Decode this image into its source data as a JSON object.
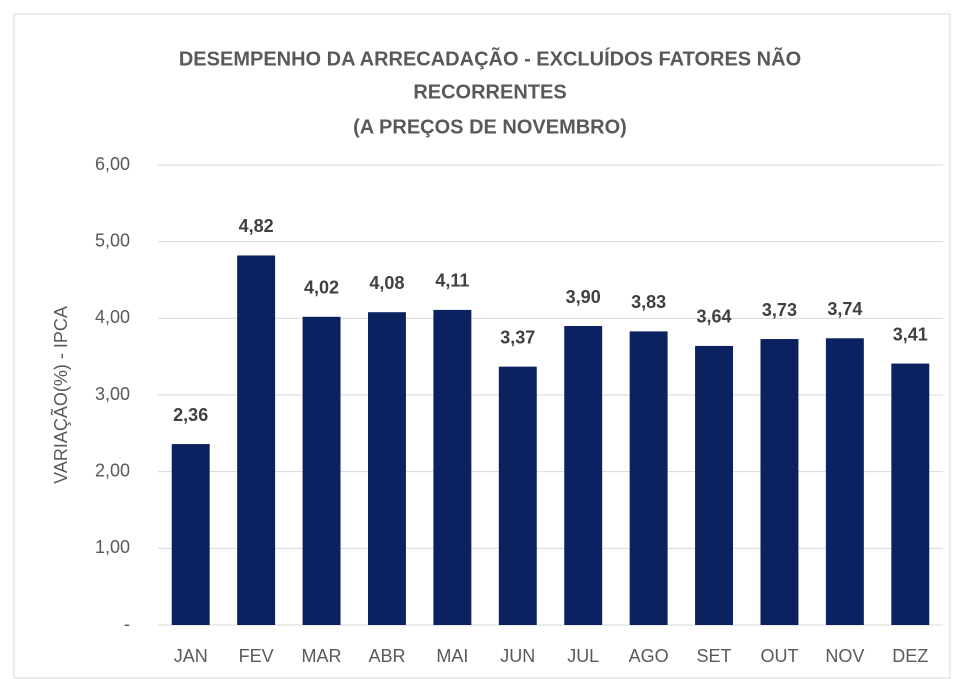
{
  "chart_data": {
    "type": "bar",
    "title": [
      "DESEMPENHO DA ARRECADAÇÃO - EXCLUÍDOS FATORES NÃO",
      "RECORRENTES",
      "(A PREÇOS DE NOVEMBRO)"
    ],
    "y_label": "VARIAÇÃO(%) - IPCA",
    "categories": [
      "JAN",
      "FEV",
      "MAR",
      "ABR",
      "MAI",
      "JUN",
      "JUL",
      "AGO",
      "SET",
      "OUT",
      "NOV",
      "DEZ"
    ],
    "values": [
      2.36,
      4.82,
      4.02,
      4.08,
      4.11,
      3.37,
      3.9,
      3.83,
      3.64,
      3.73,
      3.74,
      3.41
    ],
    "value_labels": [
      "2,36",
      "4,82",
      "4,02",
      "4,08",
      "4,11",
      "3,37",
      "3,90",
      "3,83",
      "3,64",
      "3,73",
      "3,74",
      "3,41"
    ],
    "color": "#0c2160",
    "ylim": [
      0,
      6
    ],
    "yticks": [
      {
        "value": 0,
        "label": "-"
      },
      {
        "value": 1,
        "label": "1,00"
      },
      {
        "value": 2,
        "label": "2,00"
      },
      {
        "value": 3,
        "label": "3,00"
      },
      {
        "value": 4,
        "label": "4,00"
      },
      {
        "value": 5,
        "label": "5,00"
      },
      {
        "value": 6,
        "label": "6,00"
      }
    ],
    "grid": true
  }
}
